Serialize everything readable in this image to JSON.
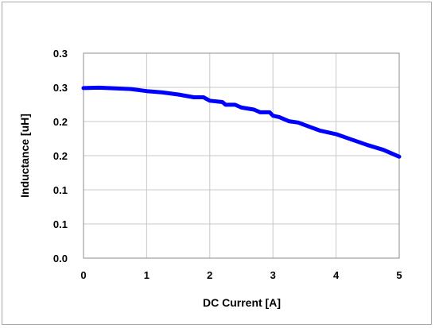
{
  "chart_data": {
    "type": "line",
    "title": "",
    "xlabel": "DC Current [A]",
    "ylabel": "Inductance [uH]",
    "xlim": [
      0,
      5
    ],
    "ylim": [
      0,
      0.3
    ],
    "grid": true,
    "x_ticks": [
      "0",
      "1",
      "2",
      "3",
      "4",
      "5"
    ],
    "y_ticks": [
      "0.0",
      "0.1",
      "0.1",
      "0.2",
      "0.2",
      "0.3",
      "0.3"
    ],
    "series": [
      {
        "color": "#0000ff",
        "x": [
          0,
          0.25,
          0.5,
          0.75,
          1.0,
          1.25,
          1.5,
          1.75,
          1.9,
          2.0,
          2.2,
          2.25,
          2.4,
          2.5,
          2.7,
          2.8,
          2.95,
          3.0,
          3.1,
          3.25,
          3.4,
          3.5,
          3.75,
          4.0,
          4.25,
          4.5,
          4.75,
          5.0
        ],
        "y": [
          0.249,
          0.2495,
          0.2485,
          0.2475,
          0.2445,
          0.2425,
          0.2395,
          0.2355,
          0.2355,
          0.2305,
          0.2285,
          0.2245,
          0.2245,
          0.2205,
          0.2175,
          0.2135,
          0.2135,
          0.2085,
          0.2065,
          0.2005,
          0.1985,
          0.195,
          0.1865,
          0.1815,
          0.1735,
          0.1655,
          0.1585,
          0.1485
        ]
      }
    ]
  }
}
